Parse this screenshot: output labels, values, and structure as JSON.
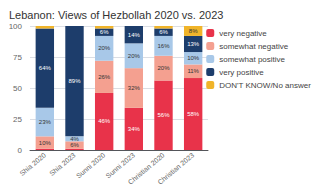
{
  "chart_data": {
    "type": "bar",
    "title": "Lebanon: Views of Hezbollah 2020 vs. 2023",
    "categories": [
      "Shia 2020",
      "Shia 2023",
      "Sunni 2020",
      "Sunni 2023",
      "Christian 2020",
      "Christian 2023"
    ],
    "stacked": true,
    "data_labels": true,
    "grid": true,
    "legend": "right",
    "ylim": [
      0,
      100
    ],
    "yticks": [
      0,
      25,
      50,
      75,
      100
    ],
    "series": [
      {
        "name": "very negative",
        "color": "#e8334a",
        "values": [
          1,
          1,
          46,
          34,
          56,
          58
        ],
        "value_labels": [
          null,
          null,
          "46%",
          "34%",
          "56%",
          "58%"
        ]
      },
      {
        "name": "somewhat negative",
        "color": "#f4a090",
        "values": [
          10,
          6,
          26,
          32,
          20,
          11
        ],
        "value_labels": [
          "10%",
          "6%",
          "26%",
          "32%",
          "20%",
          "11%"
        ]
      },
      {
        "name": "somewhat positive",
        "color": "#a8c8e8",
        "values": [
          23,
          4,
          20,
          20,
          16,
          10
        ],
        "value_labels": [
          "23%",
          "4%",
          "20%",
          "20%",
          "16%",
          "10%"
        ]
      },
      {
        "name": "very positive",
        "color": "#1d3d6b",
        "values": [
          64,
          89,
          6,
          14,
          6,
          13
        ],
        "value_labels": [
          "64%",
          "89%",
          "6%",
          "14%",
          "6%",
          "13%"
        ]
      },
      {
        "name": "DON'T KNOW/No answer",
        "color": "#f0b429",
        "values": [
          2,
          0,
          2,
          0,
          2,
          8
        ],
        "value_labels": [
          null,
          null,
          null,
          null,
          null,
          "8%"
        ]
      }
    ]
  }
}
